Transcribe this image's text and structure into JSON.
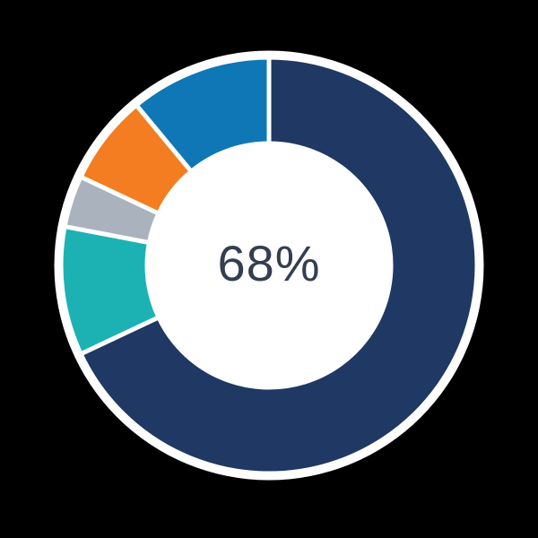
{
  "chart_data": {
    "type": "pie",
    "subtype": "donut",
    "title": "",
    "center_label": "68%",
    "start_angle_deg": 0,
    "direction": "clockwise",
    "legend": "none",
    "segments": [
      {
        "name": "navy",
        "value": 68,
        "color": "#203864"
      },
      {
        "name": "teal",
        "value": 10,
        "color": "#1CB2B4"
      },
      {
        "name": "gray",
        "value": 4,
        "color": "#A9B2BD"
      },
      {
        "name": "orange",
        "value": 7,
        "color": "#F37D20"
      },
      {
        "name": "blue",
        "value": 11,
        "color": "#0F77B6"
      }
    ],
    "colors": {
      "background": "#000000",
      "halo": "#FFFFFF",
      "segment_gap": "#FFFFFF",
      "center_label_text": "#333F50"
    }
  }
}
